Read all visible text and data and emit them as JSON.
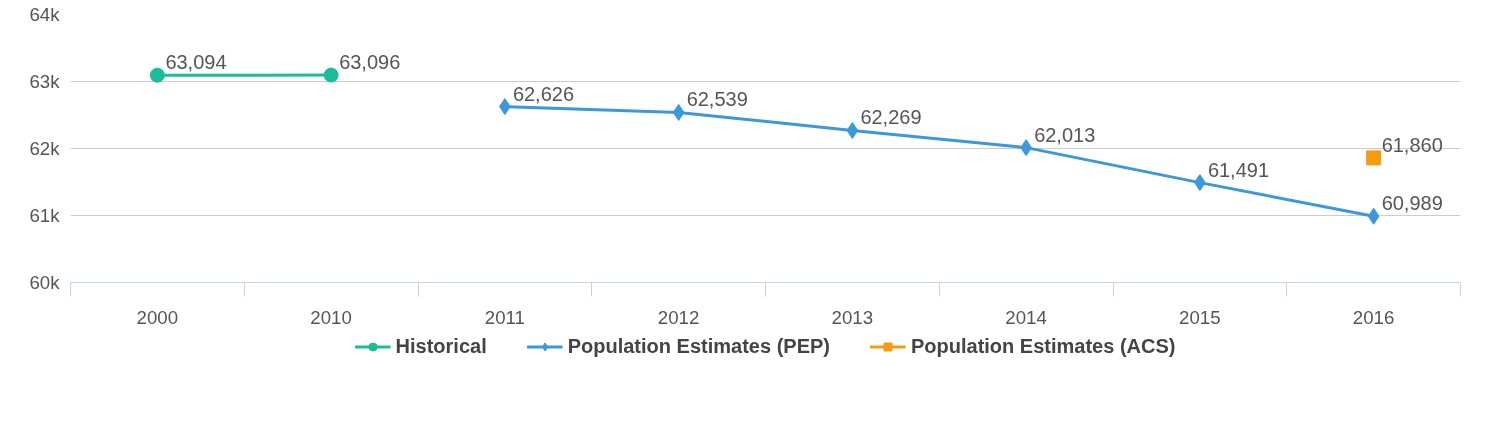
{
  "chart_data": {
    "type": "line",
    "categories": [
      "2000",
      "2010",
      "2011",
      "2012",
      "2013",
      "2014",
      "2015",
      "2016"
    ],
    "series": [
      {
        "name": "Historical",
        "color": "#1abc9c",
        "marker": "circle",
        "values": [
          63094,
          63096,
          null,
          null,
          null,
          null,
          null,
          null
        ],
        "value_labels": [
          "63,094",
          "63,096",
          null,
          null,
          null,
          null,
          null,
          null
        ]
      },
      {
        "name": "Population Estimates (PEP)",
        "color": "#3a98db",
        "marker": "diamond",
        "values": [
          null,
          null,
          62626,
          62539,
          62269,
          62013,
          61491,
          60989
        ],
        "value_labels": [
          null,
          null,
          "62,626",
          "62,539",
          "62,269",
          "62,013",
          "61,491",
          "60,989"
        ]
      },
      {
        "name": "Population Estimates (ACS)",
        "color": "#f39c12",
        "marker": "square",
        "values": [
          null,
          null,
          null,
          null,
          null,
          null,
          null,
          61860
        ],
        "value_labels": [
          null,
          null,
          null,
          null,
          null,
          null,
          null,
          "61,860"
        ]
      }
    ],
    "ylim": [
      60000,
      64000
    ],
    "yticks": [
      {
        "value": 60000,
        "label": "60k"
      },
      {
        "value": 61000,
        "label": "61k"
      },
      {
        "value": 62000,
        "label": "62k"
      },
      {
        "value": 63000,
        "label": "63k"
      },
      {
        "value": 64000,
        "label": "64k"
      }
    ],
    "grid": "y",
    "legend": "bottom",
    "line_style": "solid"
  }
}
